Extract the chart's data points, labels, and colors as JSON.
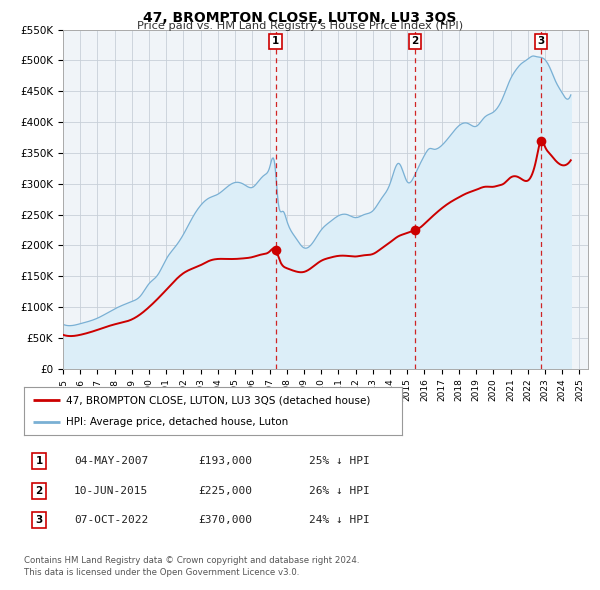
{
  "title": "47, BROMPTON CLOSE, LUTON, LU3 3QS",
  "subtitle": "Price paid vs. HM Land Registry's House Price Index (HPI)",
  "legend_line1": "47, BROMPTON CLOSE, LUTON, LU3 3QS (detached house)",
  "legend_line2": "HPI: Average price, detached house, Luton",
  "footnote1": "Contains HM Land Registry data © Crown copyright and database right 2024.",
  "footnote2": "This data is licensed under the Open Government Licence v3.0.",
  "sale_color": "#cc0000",
  "hpi_color": "#7ab0d4",
  "hpi_fill_color": "#dceef8",
  "bg_color": "#f0f4f8",
  "grid_color": "#c8d0d8",
  "ylim": [
    0,
    550000
  ],
  "yticks": [
    0,
    50000,
    100000,
    150000,
    200000,
    250000,
    300000,
    350000,
    400000,
    450000,
    500000,
    550000
  ],
  "ytick_labels": [
    "£0",
    "£50K",
    "£100K",
    "£150K",
    "£200K",
    "£250K",
    "£300K",
    "£350K",
    "£400K",
    "£450K",
    "£500K",
    "£550K"
  ],
  "xlim_start": 1995.0,
  "xlim_end": 2025.5,
  "xtick_labels": [
    "1995",
    "1996",
    "1997",
    "1998",
    "1999",
    "2000",
    "2001",
    "2002",
    "2003",
    "2004",
    "2005",
    "2006",
    "2007",
    "2008",
    "2009",
    "2010",
    "2011",
    "2012",
    "2013",
    "2014",
    "2015",
    "2016",
    "2017",
    "2018",
    "2019",
    "2020",
    "2021",
    "2022",
    "2023",
    "2024",
    "2025"
  ],
  "sale_dates": [
    2007.35,
    2015.44,
    2022.77
  ],
  "sale_prices": [
    193000,
    225000,
    370000
  ],
  "sale_labels": [
    "1",
    "2",
    "3"
  ],
  "vline_x": [
    2007.35,
    2015.44,
    2022.77
  ],
  "table_rows": [
    [
      "1",
      "04-MAY-2007",
      "£193,000",
      "25% ↓ HPI"
    ],
    [
      "2",
      "10-JUN-2015",
      "£225,000",
      "26% ↓ HPI"
    ],
    [
      "3",
      "07-OCT-2022",
      "£370,000",
      "24% ↓ HPI"
    ]
  ]
}
